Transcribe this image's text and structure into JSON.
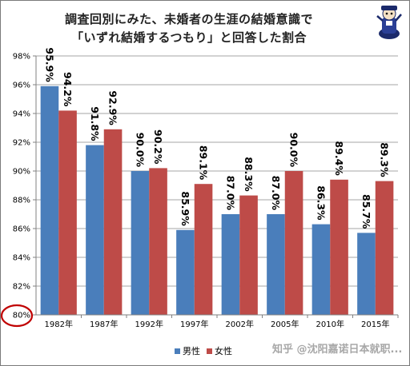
{
  "page": {
    "title_line1": "調査回別にみた、未婚者の生涯の結婚意識で",
    "title_line2": "「いずれ結婚するつもり」と回答した割合",
    "watermark": "知乎 @沈阳嘉诺日本就职..."
  },
  "chart_data": {
    "type": "bar",
    "title": "調査回別にみた、未婚者の生涯の結婚意識で「いずれ結婚するつもり」と回答した割合",
    "categories": [
      "1982年",
      "1987年",
      "1992年",
      "1997年",
      "2002年",
      "2005年",
      "2010年",
      "2015年"
    ],
    "series": [
      {
        "name": "男性",
        "values": [
          95.9,
          91.8,
          90.0,
          85.9,
          87.0,
          87.0,
          86.3,
          85.7
        ],
        "labels": [
          "95.9%",
          "91.8%",
          "90.0%",
          "85.9%",
          "87.0%",
          "87.0%",
          "86.3%",
          "85.7%"
        ],
        "color": "#4a7ebb"
      },
      {
        "name": "女性",
        "values": [
          94.2,
          92.9,
          90.2,
          89.1,
          88.3,
          90.0,
          89.4,
          89.3
        ],
        "labels": [
          "94.2%",
          "92.9%",
          "90.2%",
          "89.1%",
          "88.3%",
          "90.0%",
          "89.4%",
          "89.3%"
        ],
        "color": "#be4b48"
      }
    ],
    "ylim": [
      80,
      98
    ],
    "yticks": [
      "80%",
      "82%",
      "84%",
      "86%",
      "88%",
      "90%",
      "92%",
      "94%",
      "96%",
      "98%"
    ],
    "xlabel": "",
    "ylabel": "",
    "grid": true,
    "legend": "bottom-center",
    "annotation": "red circle around the 80% axis baseline label"
  }
}
